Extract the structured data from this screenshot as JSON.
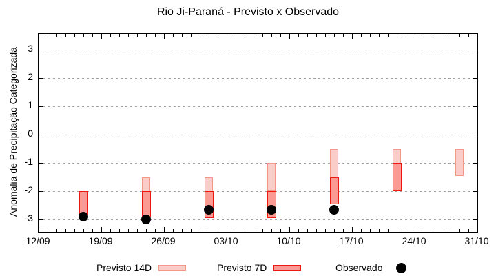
{
  "title": "Rio Ji-Paraná - Previsto x Observado",
  "colors": {
    "background": "#ffffff",
    "axis": "#000000",
    "grid": "#a3a3a3",
    "forecast14d_fill": "#fbcdc8",
    "forecast14d_border": "#f5968b",
    "forecast7d_fill": "#fb9a93",
    "forecast7d_border": "#ee1810",
    "observed": "#000000"
  },
  "legend": [
    {
      "label": "Previsto 14D",
      "swatch": "bar",
      "fill": "#fbcdc8",
      "border": "#f5968b"
    },
    {
      "label": "Previsto 7D",
      "swatch": "bar",
      "fill": "#fb9a93",
      "border": "#ee1810"
    },
    {
      "label": "Observado",
      "swatch": "dot",
      "fill": "#000000"
    }
  ],
  "chart_data": {
    "type": "bar",
    "title": "Rio Ji-Paraná - Previsto x Observado",
    "xlabel": "",
    "ylabel": "Anomalia de Precipitação Categorizada",
    "grid": "horizontal dotted",
    "legend_position": "below plot",
    "y_axis": {
      "ticks": [
        3,
        2,
        1,
        0,
        -1,
        -2,
        -3
      ],
      "ylim": [
        -3.45,
        3.55
      ]
    },
    "x_axis": {
      "range_days": [
        0,
        49
      ],
      "minor_tick_every_days": 1,
      "ticks": [
        {
          "label": "12/09",
          "day": 0
        },
        {
          "label": "19/09",
          "day": 7
        },
        {
          "label": "26/09",
          "day": 14
        },
        {
          "label": "03/10",
          "day": 21
        },
        {
          "label": "10/10",
          "day": 28
        },
        {
          "label": "17/10",
          "day": 35
        },
        {
          "label": "24/10",
          "day": 42
        },
        {
          "label": "31/10",
          "day": 49
        }
      ]
    },
    "series": [
      {
        "name": "Previsto 14D",
        "type": "range-bar",
        "fill": "#fbcdc8",
        "border": "#f5968b",
        "points": [
          {
            "date": "24/09",
            "day": 12,
            "top": -1.5,
            "bottom": -2.0
          },
          {
            "date": "01/10",
            "day": 19,
            "top": -1.5,
            "bottom": -2.0
          },
          {
            "date": "08/10",
            "day": 26,
            "top": -1.0,
            "bottom": -2.0
          },
          {
            "date": "15/10",
            "day": 33,
            "top": -0.5,
            "bottom": -1.5
          },
          {
            "date": "22/10",
            "day": 40,
            "top": -0.5,
            "bottom": -1.0
          },
          {
            "date": "29/10",
            "day": 47,
            "top": -0.5,
            "bottom": -1.45
          }
        ]
      },
      {
        "name": "Previsto 7D",
        "type": "range-bar",
        "fill": "#fb9a93",
        "border": "#ee1810",
        "points": [
          {
            "date": "17/09",
            "day": 5,
            "top": -2.0,
            "bottom": -2.85
          },
          {
            "date": "24/09",
            "day": 12,
            "top": -2.0,
            "bottom": -2.9
          },
          {
            "date": "01/10",
            "day": 19,
            "top": -2.0,
            "bottom": -2.95
          },
          {
            "date": "08/10",
            "day": 26,
            "top": -2.0,
            "bottom": -2.95
          },
          {
            "date": "15/10",
            "day": 33,
            "top": -1.5,
            "bottom": -2.45
          },
          {
            "date": "22/10",
            "day": 40,
            "top": -1.0,
            "bottom": -2.0
          }
        ]
      },
      {
        "name": "Observado",
        "type": "scatter",
        "fill": "#000000",
        "points": [
          {
            "date": "17/09",
            "day": 5,
            "value": -2.9
          },
          {
            "date": "24/09",
            "day": 12,
            "value": -3.0
          },
          {
            "date": "01/10",
            "day": 19,
            "value": -2.65
          },
          {
            "date": "08/10",
            "day": 26,
            "value": -2.65
          },
          {
            "date": "15/10",
            "day": 33,
            "value": -2.65
          }
        ]
      }
    ]
  }
}
